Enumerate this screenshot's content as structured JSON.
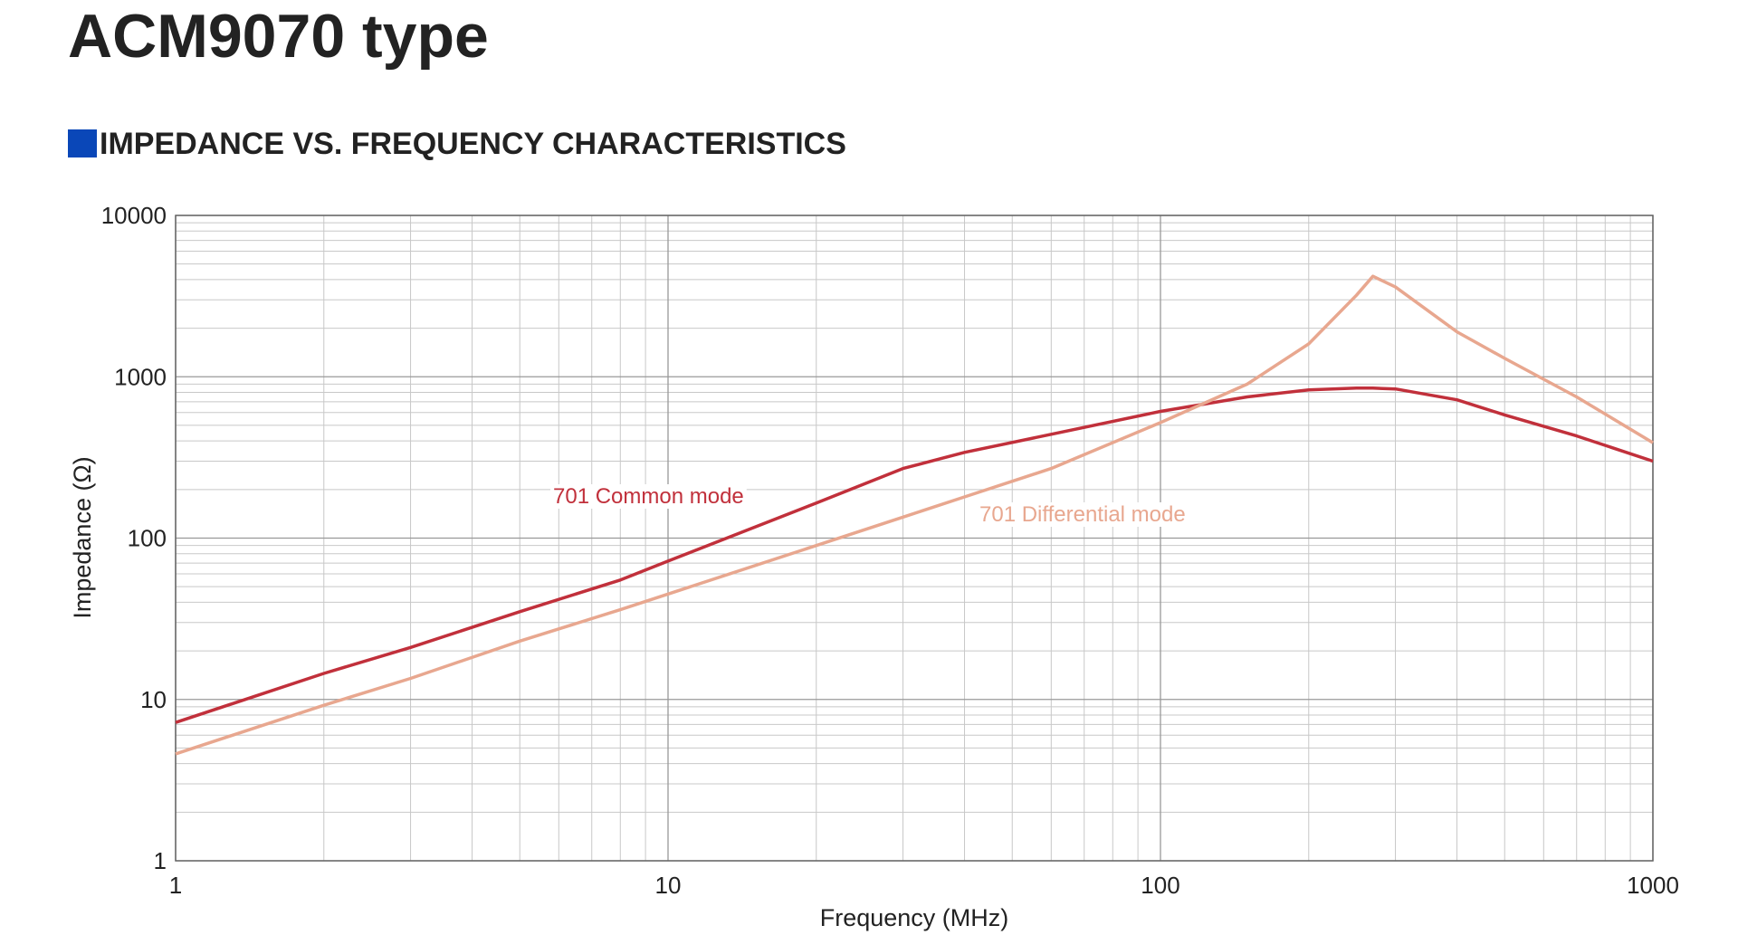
{
  "title": "ACM9070 type",
  "chart_data": {
    "type": "line",
    "title": "IMPEDANCE VS. FREQUENCY CHARACTERISTICS",
    "xlabel": "Frequency (MHz)",
    "ylabel": "Impedance (Ω)",
    "xscale": "log",
    "yscale": "log",
    "xlim": [
      1,
      1000
    ],
    "ylim": [
      1,
      10000
    ],
    "xticks": [
      1,
      10,
      100,
      1000
    ],
    "yticks": [
      1,
      10,
      100,
      1000,
      10000
    ],
    "grid": true,
    "minor_grid": true,
    "x": [
      1,
      2,
      3,
      5,
      8,
      10,
      20,
      30,
      40,
      60,
      100,
      150,
      200,
      250,
      270,
      300,
      400,
      500,
      700,
      1000
    ],
    "series": [
      {
        "name": "701 Common mode",
        "color": "#c1303b",
        "values": [
          7.2,
          14.5,
          21,
          35,
          55,
          72,
          165,
          270,
          340,
          440,
          610,
          750,
          830,
          850,
          850,
          840,
          720,
          580,
          430,
          300
        ]
      },
      {
        "name": "701 Differential mode",
        "color": "#e8a78f",
        "values": [
          4.6,
          9.2,
          13.5,
          23,
          36,
          45,
          90,
          135,
          180,
          270,
          520,
          900,
          1600,
          3200,
          4200,
          3600,
          1900,
          1300,
          750,
          390
        ]
      }
    ]
  }
}
